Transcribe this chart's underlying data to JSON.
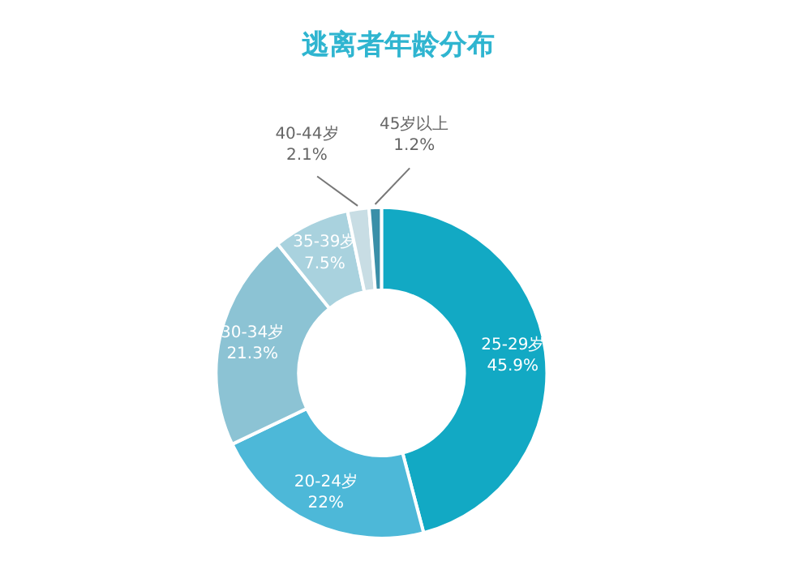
{
  "chart_data": {
    "type": "donut",
    "title": "逃离者年龄分布",
    "categories": [
      "25-29岁",
      "20-24岁",
      "30-34岁",
      "35-39岁",
      "40-44岁",
      "45岁以上"
    ],
    "values": [
      45.9,
      22,
      21.3,
      7.5,
      2.1,
      1.2
    ],
    "value_labels": [
      "45.9%",
      "22%",
      "21.3%",
      "7.5%",
      "2.1%",
      "1.2%"
    ],
    "colors": [
      "#12a9c4",
      "#4db8d8",
      "#8cc3d4",
      "#a9d2de",
      "#c8dde4",
      "#3a8fa8"
    ],
    "legend": false
  }
}
